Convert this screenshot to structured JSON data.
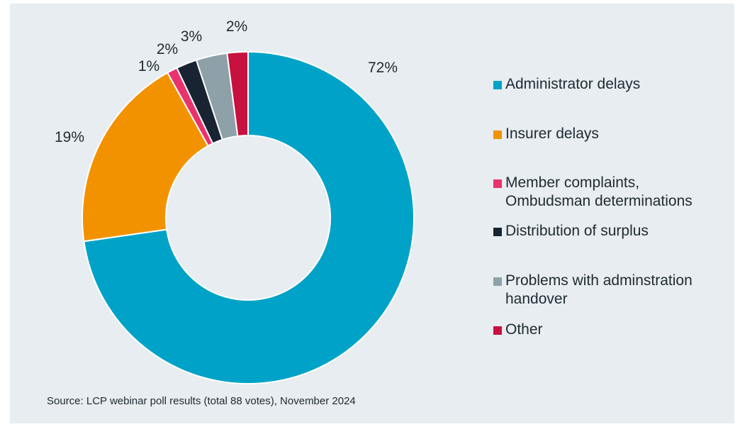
{
  "chart_data": {
    "type": "pie",
    "donut": true,
    "categories": [
      "Administrator delays",
      "Insurer delays",
      "Member complaints, Ombudsman determinations",
      "Distribution of surplus",
      "Problems with adminstration handover",
      "Other"
    ],
    "values": [
      72,
      19,
      1,
      2,
      3,
      2
    ],
    "value_labels": [
      "72%",
      "19%",
      "1%",
      "2%",
      "3%",
      "2%"
    ],
    "colors": [
      "#00a3c7",
      "#f39200",
      "#e8336d",
      "#192433",
      "#8ea1a8",
      "#c7113f"
    ],
    "legend_labels": [
      "Administrator delays",
      "Insurer delays",
      "Member complaints,\nOmbudsman determinations",
      "Distribution of surplus",
      "Problems with adminstration\nhandover",
      "Other"
    ],
    "legend_position": "right"
  },
  "source_note": "Source: LCP webinar poll results (total 88 votes), November 2024"
}
